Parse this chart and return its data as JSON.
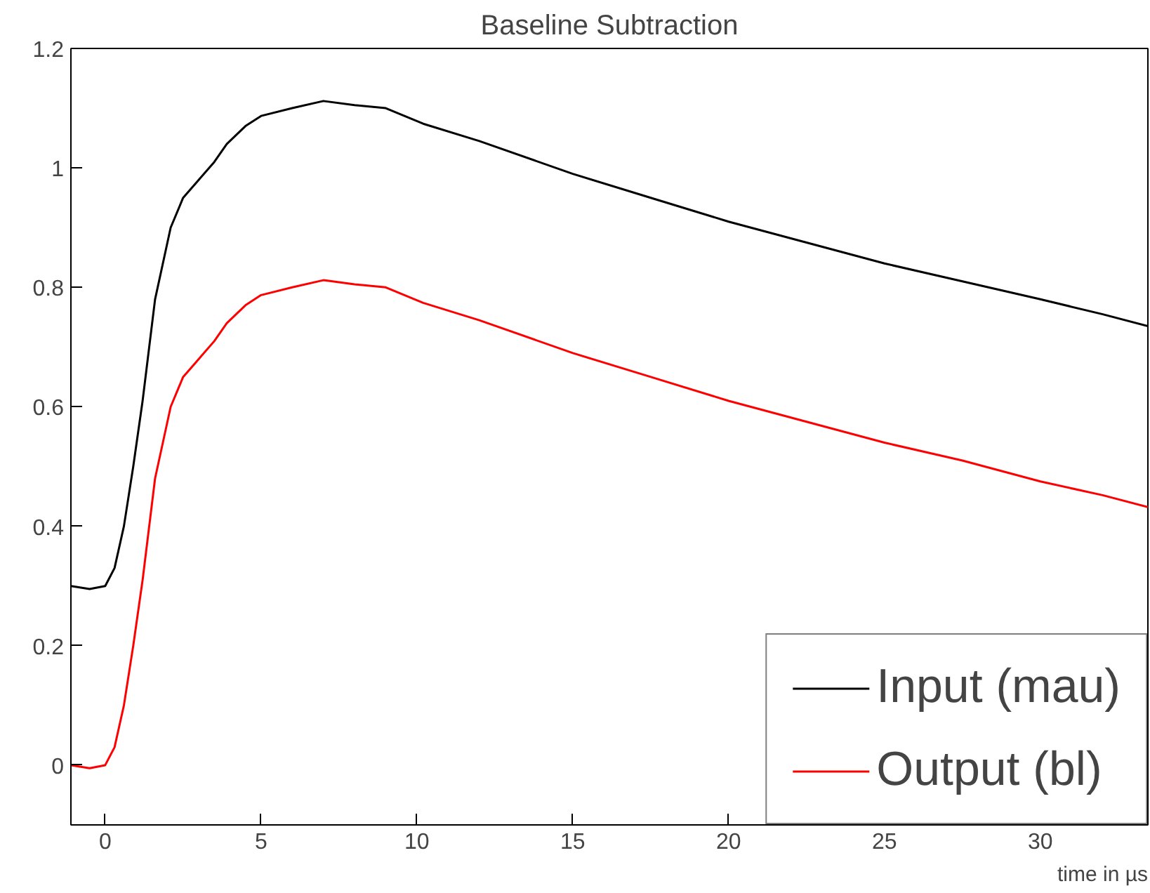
{
  "chart_data": {
    "type": "line",
    "title": "Baseline Subtraction",
    "xlabel": "time in µs",
    "xlim": [
      -1.1,
      33.45
    ],
    "ylim": [
      -0.1,
      1.2
    ],
    "xticks": [
      0,
      5,
      10,
      15,
      20,
      25,
      30
    ],
    "yticks": [
      0,
      0.2,
      0.4,
      0.6,
      0.8,
      1,
      1.2
    ],
    "grid": false,
    "legend": "bottom right",
    "marker": "none",
    "line_style": "solid",
    "series": [
      {
        "name": "Input (mau)",
        "color": "#000000",
        "x": [
          -1.1,
          -0.5,
          0,
          0.3,
          0.6,
          0.9,
          1.2,
          1.6,
          2.1,
          2.5,
          3.0,
          3.5,
          3.9,
          4.5,
          5,
          6,
          7,
          8,
          9,
          10.2,
          12,
          15,
          17.5,
          20,
          22.5,
          25,
          27.5,
          30,
          32,
          33.45
        ],
        "values": [
          0.3,
          0.295,
          0.3,
          0.33,
          0.4,
          0.5,
          0.61,
          0.78,
          0.9,
          0.95,
          0.98,
          1.01,
          1.04,
          1.07,
          1.087,
          1.1,
          1.112,
          1.105,
          1.1,
          1.074,
          1.045,
          0.99,
          0.95,
          0.91,
          0.875,
          0.84,
          0.81,
          0.78,
          0.755,
          0.735
        ]
      },
      {
        "name": "Output (bl)",
        "color": "#ff0000",
        "x": [
          -1.1,
          -0.5,
          0,
          0.3,
          0.6,
          0.9,
          1.2,
          1.6,
          2.1,
          2.5,
          3.0,
          3.5,
          3.9,
          4.5,
          5,
          6,
          7,
          8,
          9,
          10.2,
          12,
          15,
          17.5,
          20,
          22.5,
          25,
          27.5,
          30,
          32,
          33.45
        ],
        "values": [
          0.0,
          -0.005,
          0.0,
          0.03,
          0.1,
          0.2,
          0.31,
          0.48,
          0.6,
          0.65,
          0.68,
          0.71,
          0.74,
          0.77,
          0.787,
          0.8,
          0.812,
          0.805,
          0.8,
          0.774,
          0.745,
          0.69,
          0.65,
          0.61,
          0.575,
          0.54,
          0.51,
          0.475,
          0.452,
          0.432
        ]
      }
    ]
  }
}
